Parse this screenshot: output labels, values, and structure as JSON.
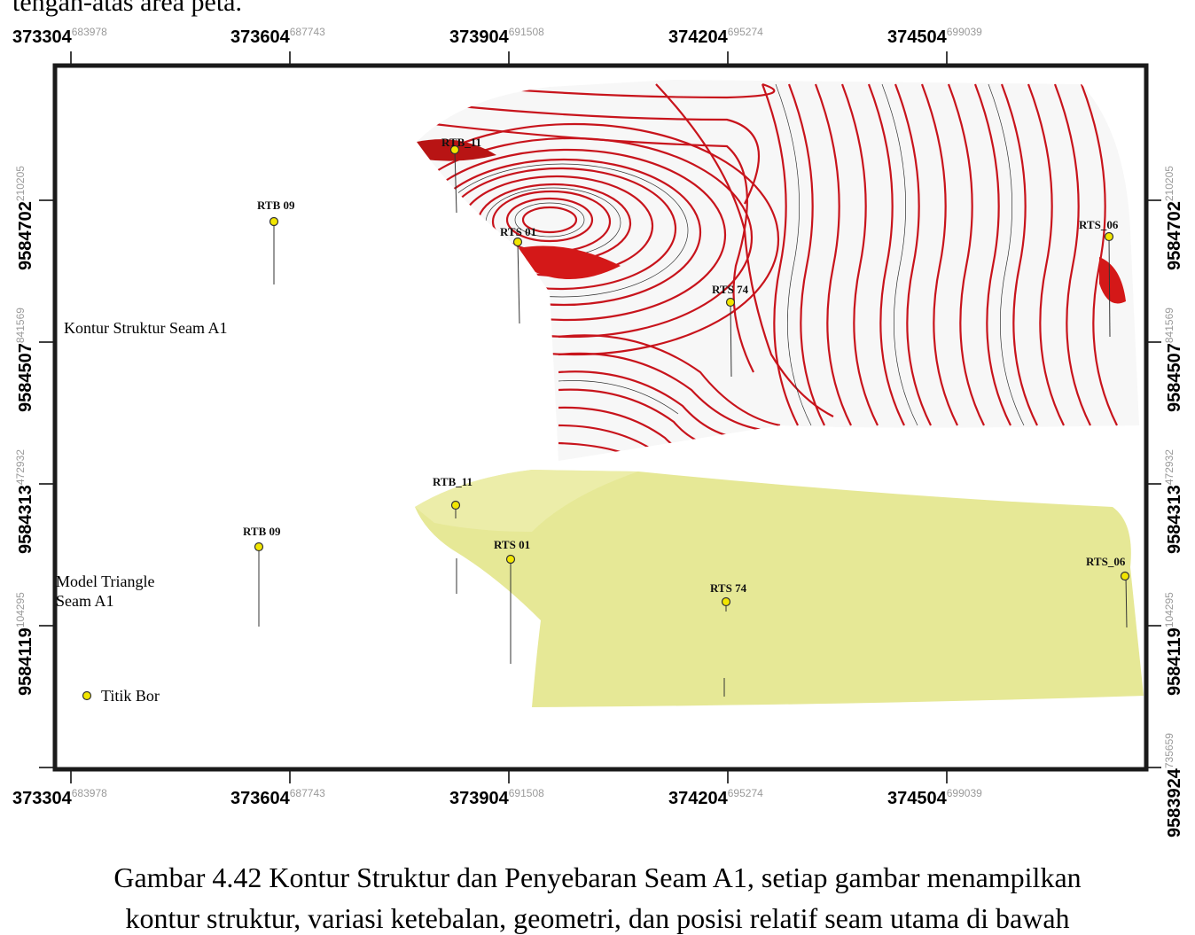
{
  "intro_text": "tengah-atas area peta.",
  "caption": {
    "line1": "Gambar 4.42 Kontur Struktur dan Penyebaran Seam A1, setiap gambar menampilkan",
    "line2": "kontur struktur, variasi ketebalan, geometri, dan posisi relatif seam utama di bawah"
  },
  "x_ticks": [
    {
      "big": "373304",
      "small": "683978"
    },
    {
      "big": "373604",
      "small": "687743"
    },
    {
      "big": "373904",
      "small": "691508"
    },
    {
      "big": "374204",
      "small": "695274"
    },
    {
      "big": "374504",
      "small": "699039"
    }
  ],
  "y_ticks_left": [
    {
      "big": "9584702",
      "small": "210205"
    },
    {
      "big": "9584507",
      "small": "841569"
    },
    {
      "big": "9584313",
      "small": "472932"
    },
    {
      "big": "9584119",
      "small": "104295"
    }
  ],
  "y_ticks_right": [
    {
      "big": "9584702",
      "small": "210205"
    },
    {
      "big": "9584507",
      "small": "841569"
    },
    {
      "big": "9584313",
      "small": "472932"
    },
    {
      "big": "9584119",
      "small": "104295"
    },
    {
      "big": "9583924",
      "small": "735659"
    }
  ],
  "panel_labels": {
    "top": "Kontur Struktur Seam A1",
    "bottom_line1": "Model Triangle",
    "bottom_line2": "Seam A1"
  },
  "legend": {
    "label": "Titik Bor",
    "marker_color": "#f2e600"
  },
  "boreholes_top": [
    "RTB_11",
    "RTB 09",
    "RTS 01",
    "RTS 74",
    "RTS_06"
  ],
  "boreholes_bottom": [
    "RTB_11",
    "RTB 09",
    "RTS 01",
    "RTS 74",
    "RTS_06"
  ],
  "colors": {
    "contour": "#c8141c",
    "model_surface": "#e6e896",
    "frame": "#1a1a1a",
    "marker": "#f2e600"
  }
}
